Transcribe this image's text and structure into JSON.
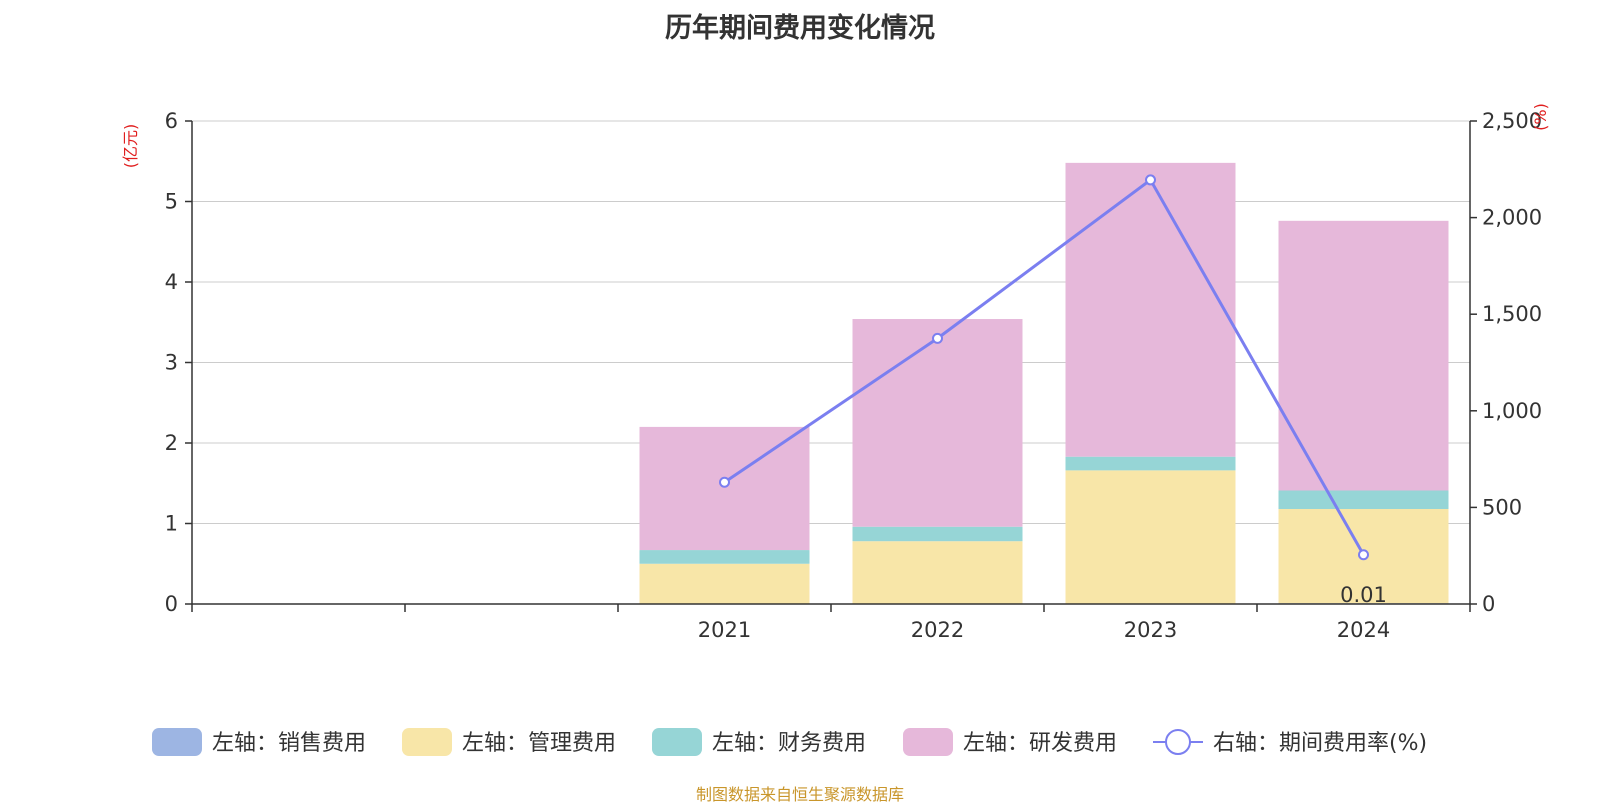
{
  "chart_data": {
    "type": "bar",
    "title": "历年期间费用变化情况",
    "categories": [
      "",
      "",
      "2021",
      "2022",
      "2023",
      "2024"
    ],
    "y_left": {
      "unit": "(亿元)",
      "min": 0,
      "max": 6,
      "ticks": [
        "0",
        "1",
        "2",
        "3",
        "4",
        "5",
        "6"
      ]
    },
    "y_right": {
      "unit": "(%)",
      "min": 0,
      "max": 2500,
      "ticks": [
        "0",
        "500",
        "1,000",
        "1,500",
        "2,000",
        "2,500"
      ]
    },
    "grid": true,
    "legend_position": "bottom",
    "series": [
      {
        "name": "左轴：销售费用",
        "type": "bar",
        "axis": "left",
        "color": "#9db5e3",
        "values": [
          null,
          null,
          0,
          0,
          0,
          0.01
        ]
      },
      {
        "name": "左轴：管理费用",
        "type": "bar",
        "axis": "left",
        "color": "#f8e6a8",
        "values": [
          null,
          null,
          0.5,
          0.78,
          1.66,
          1.17
        ]
      },
      {
        "name": "左轴：财务费用",
        "type": "bar",
        "axis": "left",
        "color": "#96d5d6",
        "values": [
          null,
          null,
          0.17,
          0.18,
          0.17,
          0.23
        ]
      },
      {
        "name": "左轴：研发费用",
        "type": "bar",
        "axis": "left",
        "color": "#e6b8da",
        "values": [
          null,
          null,
          1.53,
          2.58,
          3.65,
          3.35
        ]
      },
      {
        "name": "右轴：期间费用率(%)",
        "type": "line",
        "axis": "right",
        "color": "#7b7ff0",
        "values": [
          null,
          null,
          630,
          1375,
          2195,
          255
        ]
      }
    ],
    "data_labels": [
      {
        "category": "2024",
        "text": "0.01"
      }
    ]
  },
  "footer": {
    "source": "制图数据来自恒生聚源数据库"
  }
}
